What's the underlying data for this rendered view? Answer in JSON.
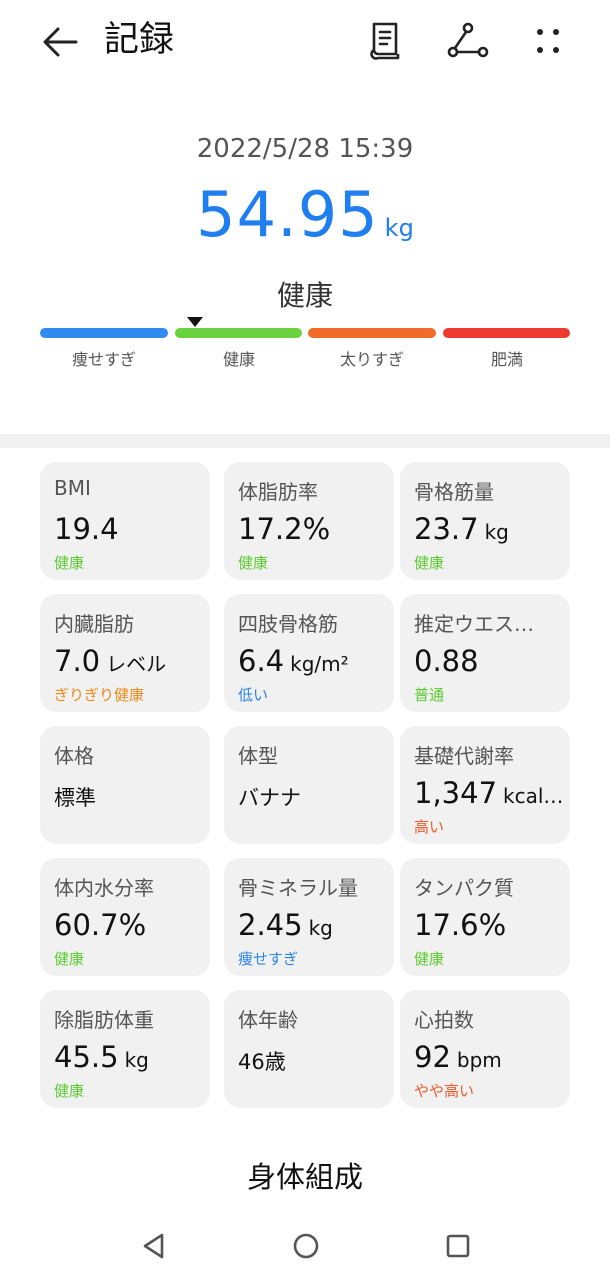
{
  "header": {
    "title": "記録",
    "icons": [
      "back-arrow-icon",
      "document-icon",
      "share-icon",
      "more-icon"
    ]
  },
  "summary": {
    "datetime": "2022/5/28 15:39",
    "weight": "54.95",
    "unit": "kg",
    "status": "健康",
    "scale": [
      "痩せすぎ",
      "健康",
      "太りすぎ",
      "肥満"
    ]
  },
  "metrics": [
    {
      "label": "BMI",
      "value": "19.4",
      "unit": "",
      "status": "健康",
      "status_color": "#5ccc2f"
    },
    {
      "label": "体脂肪率",
      "value": "17.2%",
      "unit": "",
      "status": "健康",
      "status_color": "#5ccc2f"
    },
    {
      "label": "骨格筋量",
      "value": "23.7",
      "unit": "kg",
      "status": "健康",
      "status_color": "#5ccc2f"
    },
    {
      "label": "内臓脂肪",
      "value": "7.0",
      "unit": "レベル",
      "status": "ぎりぎり健康",
      "status_color": "#ee8a1b"
    },
    {
      "label": "四肢骨格筋",
      "value": "6.4",
      "unit": "kg/m²",
      "status": "低い",
      "status_color": "#2a84e8"
    },
    {
      "label": "推定ウエス…",
      "value": "0.88",
      "unit": "",
      "status": "普通",
      "status_color": "#5ccc2f"
    },
    {
      "label": "体格",
      "value": "標準",
      "unit": "",
      "status": "",
      "status_color": "#5ccc2f"
    },
    {
      "label": "体型",
      "value": "バナナ",
      "unit": "",
      "status": "",
      "status_color": "#5ccc2f"
    },
    {
      "label": "基礎代謝率",
      "value": "1,347",
      "unit": "kcal…",
      "status": "高い",
      "status_color": "#f05a2a"
    },
    {
      "label": "体内水分率",
      "value": "60.7%",
      "unit": "",
      "status": "健康",
      "status_color": "#5ccc2f"
    },
    {
      "label": "骨ミネラル量",
      "value": "2.45",
      "unit": "kg",
      "status": "痩せすぎ",
      "status_color": "#2a84e8"
    },
    {
      "label": "タンパク質",
      "value": "17.6%",
      "unit": "",
      "status": "健康",
      "status_color": "#5ccc2f"
    },
    {
      "label": "除脂肪体重",
      "value": "45.5",
      "unit": "kg",
      "status": "健康",
      "status_color": "#5ccc2f"
    },
    {
      "label": "体年齢",
      "value": "46歳",
      "unit": "",
      "status": "",
      "status_color": "#5ccc2f"
    },
    {
      "label": "心拍数",
      "value": "92",
      "unit": "bpm",
      "status": "やや高い",
      "status_color": "#f05a2a"
    }
  ],
  "section": {
    "title": "身体組成"
  },
  "navbar": {
    "icons": [
      "nav-back-icon",
      "nav-home-icon",
      "nav-recents-icon"
    ]
  }
}
